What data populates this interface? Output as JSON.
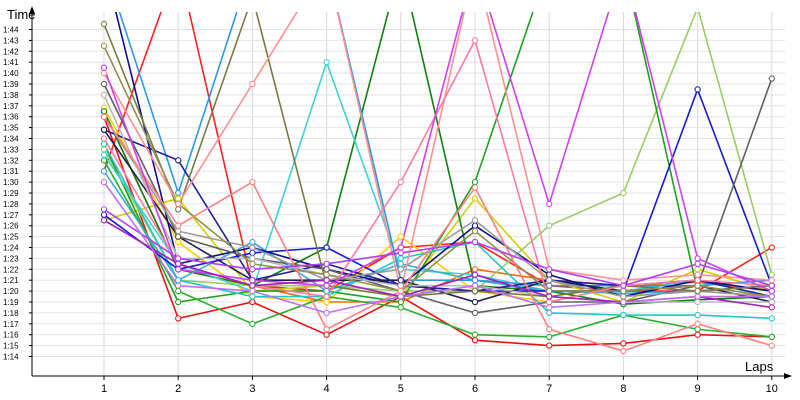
{
  "chart_data": {
    "type": "line",
    "title": "",
    "xlabel": "Laps",
    "ylabel": "Time",
    "grid": true,
    "legend": "none",
    "x": [
      1,
      2,
      3,
      4,
      5,
      6,
      7,
      8,
      9,
      10
    ],
    "xlim": [
      1,
      10
    ],
    "ylim": [
      74,
      104
    ],
    "yticks": [
      {
        "v": 74,
        "label": "1:14"
      },
      {
        "v": 75,
        "label": "1:15"
      },
      {
        "v": 76,
        "label": "1:16"
      },
      {
        "v": 77,
        "label": "1:17"
      },
      {
        "v": 78,
        "label": "1:18"
      },
      {
        "v": 79,
        "label": "1:19"
      },
      {
        "v": 80,
        "label": "1:20"
      },
      {
        "v": 81,
        "label": "1:21"
      },
      {
        "v": 82,
        "label": "1:22"
      },
      {
        "v": 83,
        "label": "1:23"
      },
      {
        "v": 84,
        "label": "1:24"
      },
      {
        "v": 85,
        "label": "1:25"
      },
      {
        "v": 86,
        "label": "1:26"
      },
      {
        "v": 87,
        "label": "1:27"
      },
      {
        "v": 88,
        "label": "1:28"
      },
      {
        "v": 89,
        "label": "1:29"
      },
      {
        "v": 90,
        "label": "1:30"
      },
      {
        "v": 91,
        "label": "1:31"
      },
      {
        "v": 92,
        "label": "1:32"
      },
      {
        "v": 93,
        "label": "1:33"
      },
      {
        "v": 94,
        "label": "1:34"
      },
      {
        "v": 95,
        "label": "1:35"
      },
      {
        "v": 96,
        "label": "1:36"
      },
      {
        "v": 97,
        "label": "1:37"
      },
      {
        "v": 98,
        "label": "1:38"
      },
      {
        "v": 99,
        "label": "1:39"
      },
      {
        "v": 100,
        "label": "1:40"
      },
      {
        "v": 101,
        "label": "1:41"
      },
      {
        "v": 102,
        "label": "1:42"
      },
      {
        "v": 103,
        "label": "1:43"
      },
      {
        "v": 104,
        "label": "1:44"
      }
    ],
    "series": [
      {
        "color": "#e81010",
        "values": [
          96.0,
          77.5,
          79.0,
          76.0,
          79.5,
          75.5,
          75.0,
          75.2,
          76.0,
          75.8
        ]
      },
      {
        "color": "#ff2020",
        "values": [
          91.0,
          110.0,
          80.5,
          80.0,
          84.0,
          84.5,
          80.5,
          80.0,
          80.0,
          84.0
        ]
      },
      {
        "color": "#ee6a10",
        "values": [
          96.5,
          82.0,
          80.5,
          79.0,
          79.0,
          82.0,
          81.0,
          80.5,
          80.8,
          80.0
        ]
      },
      {
        "color": "#ffcc00",
        "values": [
          96.8,
          84.5,
          79.5,
          79.0,
          85.0,
          80.0,
          79.0,
          80.5,
          80.0,
          79.5
        ]
      },
      {
        "color": "#d0d000",
        "values": [
          86.5,
          88.5,
          80.0,
          80.5,
          79.5,
          88.5,
          81.0,
          79.0,
          82.0,
          80.0
        ]
      },
      {
        "color": "#99cc66",
        "values": [
          93.0,
          81.0,
          80.5,
          80.5,
          80.0,
          80.0,
          86.0,
          89.0,
          106.0,
          81.5
        ]
      },
      {
        "color": "#20a020",
        "values": [
          93.5,
          79.0,
          80.0,
          80.0,
          79.0,
          90.0,
          110.0,
          110.0,
          80.0,
          80.5
        ]
      },
      {
        "color": "#2ab02a",
        "values": [
          92.0,
          80.0,
          77.0,
          79.5,
          78.5,
          76.0,
          75.8,
          77.8,
          76.5,
          75.8
        ]
      },
      {
        "color": "#108010",
        "values": [
          96.5,
          82.0,
          80.5,
          84.0,
          110.0,
          80.5,
          80.0,
          78.8,
          79.2,
          79.5
        ]
      },
      {
        "color": "#22c8c8",
        "values": [
          93.5,
          81.0,
          79.5,
          79.5,
          83.0,
          84.5,
          78.0,
          77.8,
          77.8,
          77.5
        ]
      },
      {
        "color": "#40d0d0",
        "values": [
          92.5,
          82.5,
          80.0,
          101.0,
          82.0,
          81.5,
          80.0,
          80.0,
          81.0,
          79.5
        ]
      },
      {
        "color": "#3aaad8",
        "values": [
          91.0,
          81.0,
          84.5,
          80.0,
          82.5,
          81.0,
          80.0,
          79.8,
          80.0,
          80.5
        ]
      },
      {
        "color": "#2a9ae0",
        "values": [
          110.0,
          89.0,
          110.0,
          110.0,
          81.0,
          81.0,
          80.5,
          80.5,
          80.5,
          81.0
        ]
      },
      {
        "color": "#1a1ad0",
        "values": [
          87.0,
          82.0,
          83.5,
          84.0,
          80.5,
          80.0,
          80.0,
          80.0,
          98.5,
          80.5
        ]
      },
      {
        "color": "#2020a0",
        "values": [
          94.8,
          92.0,
          81.0,
          82.5,
          80.5,
          80.0,
          81.0,
          80.5,
          81.0,
          79.5
        ]
      },
      {
        "color": "#10108a",
        "values": [
          110.0,
          82.5,
          84.0,
          82.0,
          80.5,
          86.0,
          81.5,
          79.5,
          81.0,
          80.0
        ]
      },
      {
        "color": "#202050",
        "values": [
          94.8,
          85.0,
          81.0,
          81.0,
          81.0,
          79.0,
          81.0,
          80.0,
          80.5,
          79.0
        ]
      },
      {
        "color": "#606060",
        "values": [
          99.0,
          85.0,
          83.0,
          82.0,
          80.0,
          78.0,
          79.0,
          79.0,
          80.5,
          99.5
        ]
      },
      {
        "color": "#9a9a9a",
        "values": [
          96.0,
          85.5,
          84.0,
          81.0,
          82.0,
          86.5,
          81.0,
          79.5,
          80.0,
          79.5
        ]
      },
      {
        "color": "#b8b8b8",
        "values": [
          98.0,
          83.0,
          83.0,
          81.5,
          80.5,
          80.5,
          79.5,
          79.0,
          79.0,
          79.0
        ]
      },
      {
        "color": "#7a7a40",
        "values": [
          104.5,
          87.5,
          107.0,
          80.5,
          79.5,
          80.0,
          79.5,
          80.5,
          80.0,
          80.5
        ]
      },
      {
        "color": "#909050",
        "values": [
          102.5,
          88.0,
          82.5,
          81.5,
          80.0,
          85.5,
          80.0,
          80.0,
          80.5,
          79.5
        ]
      },
      {
        "color": "#ff8080",
        "values": [
          96.0,
          86.0,
          90.0,
          76.5,
          80.0,
          89.5,
          76.5,
          74.5,
          77.0,
          75.0
        ]
      },
      {
        "color": "#ff9090",
        "values": [
          100.0,
          88.0,
          99.0,
          110.0,
          80.0,
          110.0,
          82.0,
          81.0,
          81.5,
          81.0
        ]
      },
      {
        "color": "#ff7aa0",
        "values": [
          94.0,
          82.5,
          80.5,
          79.5,
          90.0,
          103.0,
          79.0,
          80.5,
          81.0,
          80.5
        ]
      },
      {
        "color": "#d040f0",
        "values": [
          100.5,
          82.0,
          81.0,
          80.5,
          84.0,
          110.0,
          88.0,
          110.0,
          83.0,
          80.0
        ]
      },
      {
        "color": "#b040f0",
        "values": [
          87.5,
          83.0,
          82.0,
          82.5,
          83.5,
          84.5,
          82.0,
          80.5,
          82.5,
          80.5
        ]
      },
      {
        "color": "#a020c0",
        "values": [
          86.5,
          82.5,
          80.5,
          81.0,
          79.5,
          81.5,
          79.5,
          79.0,
          79.5,
          78.5
        ]
      },
      {
        "color": "#c070f0",
        "values": [
          90.0,
          80.5,
          80.0,
          78.0,
          79.5,
          80.5,
          78.5,
          79.0,
          79.5,
          79.5
        ]
      }
    ]
  }
}
